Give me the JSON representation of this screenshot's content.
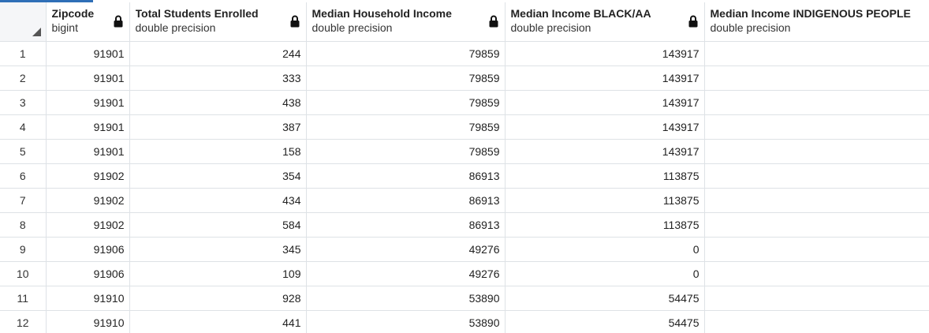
{
  "columns": [
    {
      "name": "Zipcode",
      "type": "bigint",
      "icon": "lock-icon"
    },
    {
      "name": "Total Students Enrolled",
      "type": "double precision",
      "icon": "lock-icon"
    },
    {
      "name": "Median Household Income",
      "type": "double precision",
      "icon": "lock-icon"
    },
    {
      "name": "Median Income BLACK/AA",
      "type": "double precision",
      "icon": "lock-icon"
    },
    {
      "name": "Median Income INDIGENOUS PEOPLE",
      "type": "double precision",
      "icon": "lock-icon"
    }
  ],
  "rows": [
    {
      "num": "1",
      "cells": [
        "91901",
        "244",
        "79859",
        "143917",
        ""
      ]
    },
    {
      "num": "2",
      "cells": [
        "91901",
        "333",
        "79859",
        "143917",
        ""
      ]
    },
    {
      "num": "3",
      "cells": [
        "91901",
        "438",
        "79859",
        "143917",
        ""
      ]
    },
    {
      "num": "4",
      "cells": [
        "91901",
        "387",
        "79859",
        "143917",
        ""
      ]
    },
    {
      "num": "5",
      "cells": [
        "91901",
        "158",
        "79859",
        "143917",
        ""
      ]
    },
    {
      "num": "6",
      "cells": [
        "91902",
        "354",
        "86913",
        "113875",
        ""
      ]
    },
    {
      "num": "7",
      "cells": [
        "91902",
        "434",
        "86913",
        "113875",
        ""
      ]
    },
    {
      "num": "8",
      "cells": [
        "91902",
        "584",
        "86913",
        "113875",
        ""
      ]
    },
    {
      "num": "9",
      "cells": [
        "91906",
        "345",
        "49276",
        "0",
        ""
      ]
    },
    {
      "num": "10",
      "cells": [
        "91906",
        "109",
        "49276",
        "0",
        ""
      ]
    },
    {
      "num": "11",
      "cells": [
        "91910",
        "928",
        "53890",
        "54475",
        ""
      ]
    },
    {
      "num": "12",
      "cells": [
        "91910",
        "441",
        "53890",
        "54475",
        ""
      ]
    }
  ]
}
